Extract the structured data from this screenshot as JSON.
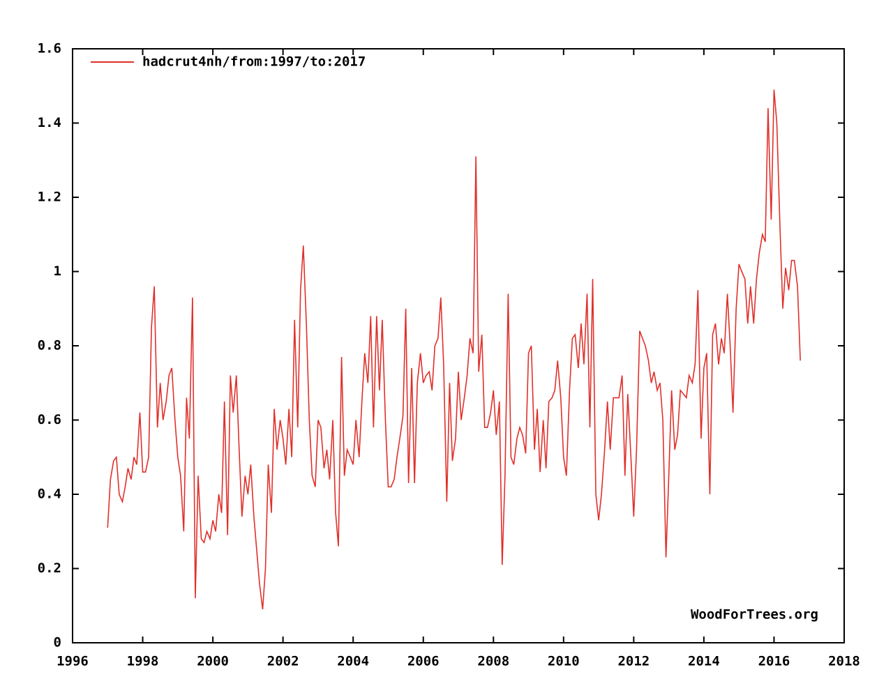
{
  "chart_data": {
    "type": "line",
    "series": [
      {
        "name": "hadcrut4nh/from:1997/to:2017",
        "color": "#e0302a",
        "values": [
          0.31,
          0.44,
          0.49,
          0.5,
          0.4,
          0.38,
          0.42,
          0.47,
          0.44,
          0.5,
          0.48,
          0.62,
          0.46,
          0.46,
          0.5,
          0.85,
          0.96,
          0.58,
          0.7,
          0.6,
          0.65,
          0.72,
          0.74,
          0.6,
          0.5,
          0.45,
          0.3,
          0.66,
          0.55,
          0.93,
          0.12,
          0.45,
          0.28,
          0.27,
          0.3,
          0.28,
          0.33,
          0.3,
          0.4,
          0.35,
          0.65,
          0.29,
          0.72,
          0.62,
          0.72,
          0.52,
          0.34,
          0.45,
          0.4,
          0.48,
          0.34,
          0.25,
          0.16,
          0.09,
          0.2,
          0.48,
          0.35,
          0.63,
          0.52,
          0.6,
          0.55,
          0.48,
          0.63,
          0.5,
          0.87,
          0.58,
          0.95,
          1.07,
          0.85,
          0.6,
          0.45,
          0.42,
          0.6,
          0.58,
          0.47,
          0.52,
          0.44,
          0.6,
          0.35,
          0.26,
          0.77,
          0.45,
          0.52,
          0.5,
          0.48,
          0.6,
          0.5,
          0.65,
          0.78,
          0.7,
          0.88,
          0.58,
          0.88,
          0.68,
          0.87,
          0.6,
          0.42,
          0.42,
          0.44,
          0.5,
          0.55,
          0.61,
          0.9,
          0.43,
          0.74,
          0.43,
          0.7,
          0.78,
          0.7,
          0.72,
          0.73,
          0.68,
          0.8,
          0.82,
          0.93,
          0.75,
          0.38,
          0.7,
          0.49,
          0.55,
          0.73,
          0.6,
          0.66,
          0.72,
          0.82,
          0.78,
          1.31,
          0.73,
          0.83,
          0.58,
          0.58,
          0.62,
          0.68,
          0.56,
          0.65,
          0.21,
          0.45,
          0.94,
          0.5,
          0.48,
          0.55,
          0.58,
          0.56,
          0.51,
          0.78,
          0.8,
          0.52,
          0.63,
          0.46,
          0.6,
          0.47,
          0.65,
          0.66,
          0.68,
          0.76,
          0.66,
          0.5,
          0.45,
          0.68,
          0.82,
          0.83,
          0.74,
          0.86,
          0.75,
          0.94,
          0.58,
          0.98,
          0.4,
          0.33,
          0.4,
          0.52,
          0.65,
          0.52,
          0.66,
          0.66,
          0.66,
          0.72,
          0.45,
          0.67,
          0.5,
          0.34,
          0.52,
          0.84,
          0.82,
          0.8,
          0.76,
          0.7,
          0.73,
          0.68,
          0.7,
          0.6,
          0.23,
          0.45,
          0.68,
          0.52,
          0.56,
          0.68,
          0.67,
          0.66,
          0.72,
          0.7,
          0.75,
          0.95,
          0.55,
          0.74,
          0.78,
          0.4,
          0.83,
          0.86,
          0.75,
          0.82,
          0.78,
          0.94,
          0.8,
          0.62,
          0.9,
          1.02,
          1.0,
          0.98,
          0.86,
          0.96,
          0.86,
          0.98,
          1.05,
          1.1,
          1.08,
          1.44,
          1.14,
          1.49,
          1.4,
          1.12,
          0.9,
          1.01,
          0.95,
          1.03,
          1.03,
          0.96,
          0.76
        ]
      }
    ],
    "x": [
      1997.0,
      1997.08,
      1997.17,
      1997.25,
      1997.33,
      1997.42,
      1997.5,
      1997.58,
      1997.67,
      1997.75,
      1997.83,
      1997.92,
      1998.0,
      1998.08,
      1998.17,
      1998.25,
      1998.33,
      1998.42,
      1998.5,
      1998.58,
      1998.67,
      1998.75,
      1998.83,
      1998.92,
      1999.0,
      1999.08,
      1999.17,
      1999.25,
      1999.33,
      1999.42,
      1999.5,
      1999.58,
      1999.67,
      1999.75,
      1999.83,
      1999.92,
      2000.0,
      2000.08,
      2000.17,
      2000.25,
      2000.33,
      2000.42,
      2000.5,
      2000.58,
      2000.67,
      2000.75,
      2000.83,
      2000.92,
      2001.0,
      2001.08,
      2001.17,
      2001.25,
      2001.33,
      2001.42,
      2001.5,
      2001.58,
      2001.67,
      2001.75,
      2001.83,
      2001.92,
      2002.0,
      2002.08,
      2002.17,
      2002.25,
      2002.33,
      2002.42,
      2002.5,
      2002.58,
      2002.67,
      2002.75,
      2002.83,
      2002.92,
      2003.0,
      2003.08,
      2003.17,
      2003.25,
      2003.33,
      2003.42,
      2003.5,
      2003.58,
      2003.67,
      2003.75,
      2003.83,
      2003.92,
      2004.0,
      2004.08,
      2004.17,
      2004.25,
      2004.33,
      2004.42,
      2004.5,
      2004.58,
      2004.67,
      2004.75,
      2004.83,
      2004.92,
      2005.0,
      2005.08,
      2005.17,
      2005.25,
      2005.33,
      2005.42,
      2005.5,
      2005.58,
      2005.67,
      2005.75,
      2005.83,
      2005.92,
      2006.0,
      2006.08,
      2006.17,
      2006.25,
      2006.33,
      2006.42,
      2006.5,
      2006.58,
      2006.67,
      2006.75,
      2006.83,
      2006.92,
      2007.0,
      2007.08,
      2007.17,
      2007.25,
      2007.33,
      2007.42,
      2007.5,
      2007.58,
      2007.67,
      2007.75,
      2007.83,
      2007.92,
      2008.0,
      2008.08,
      2008.17,
      2008.25,
      2008.33,
      2008.42,
      2008.5,
      2008.58,
      2008.67,
      2008.75,
      2008.83,
      2008.92,
      2009.0,
      2009.08,
      2009.17,
      2009.25,
      2009.33,
      2009.42,
      2009.5,
      2009.58,
      2009.67,
      2009.75,
      2009.83,
      2009.92,
      2010.0,
      2010.08,
      2010.17,
      2010.25,
      2010.33,
      2010.42,
      2010.5,
      2010.58,
      2010.67,
      2010.75,
      2010.83,
      2010.92,
      2011.0,
      2011.08,
      2011.17,
      2011.25,
      2011.33,
      2011.42,
      2011.5,
      2011.58,
      2011.67,
      2011.75,
      2011.83,
      2011.92,
      2012.0,
      2012.08,
      2012.17,
      2012.25,
      2012.33,
      2012.42,
      2012.5,
      2012.58,
      2012.67,
      2012.75,
      2012.83,
      2012.92,
      2013.0,
      2013.08,
      2013.17,
      2013.25,
      2013.33,
      2013.42,
      2013.5,
      2013.58,
      2013.67,
      2013.75,
      2013.83,
      2013.92,
      2014.0,
      2014.08,
      2014.17,
      2014.25,
      2014.33,
      2014.42,
      2014.5,
      2014.58,
      2014.67,
      2014.75,
      2014.83,
      2014.92,
      2015.0,
      2015.08,
      2015.17,
      2015.25,
      2015.33,
      2015.42,
      2015.5,
      2015.58,
      2015.67,
      2015.75,
      2015.83,
      2015.92,
      2016.0,
      2016.08,
      2016.17,
      2016.25,
      2016.33,
      2016.42,
      2016.5,
      2016.58,
      2016.67,
      2016.75
    ],
    "xlim": [
      1996,
      2018
    ],
    "xticks": [
      1996,
      1998,
      2000,
      2002,
      2004,
      2006,
      2008,
      2010,
      2012,
      2014,
      2016,
      2018
    ],
    "ylim": [
      0,
      1.6
    ],
    "yticks": [
      0,
      0.2,
      0.4,
      0.6,
      0.8,
      1,
      1.2,
      1.4,
      1.6
    ],
    "legend": "upper left",
    "annotation": "WoodForTrees.org"
  }
}
